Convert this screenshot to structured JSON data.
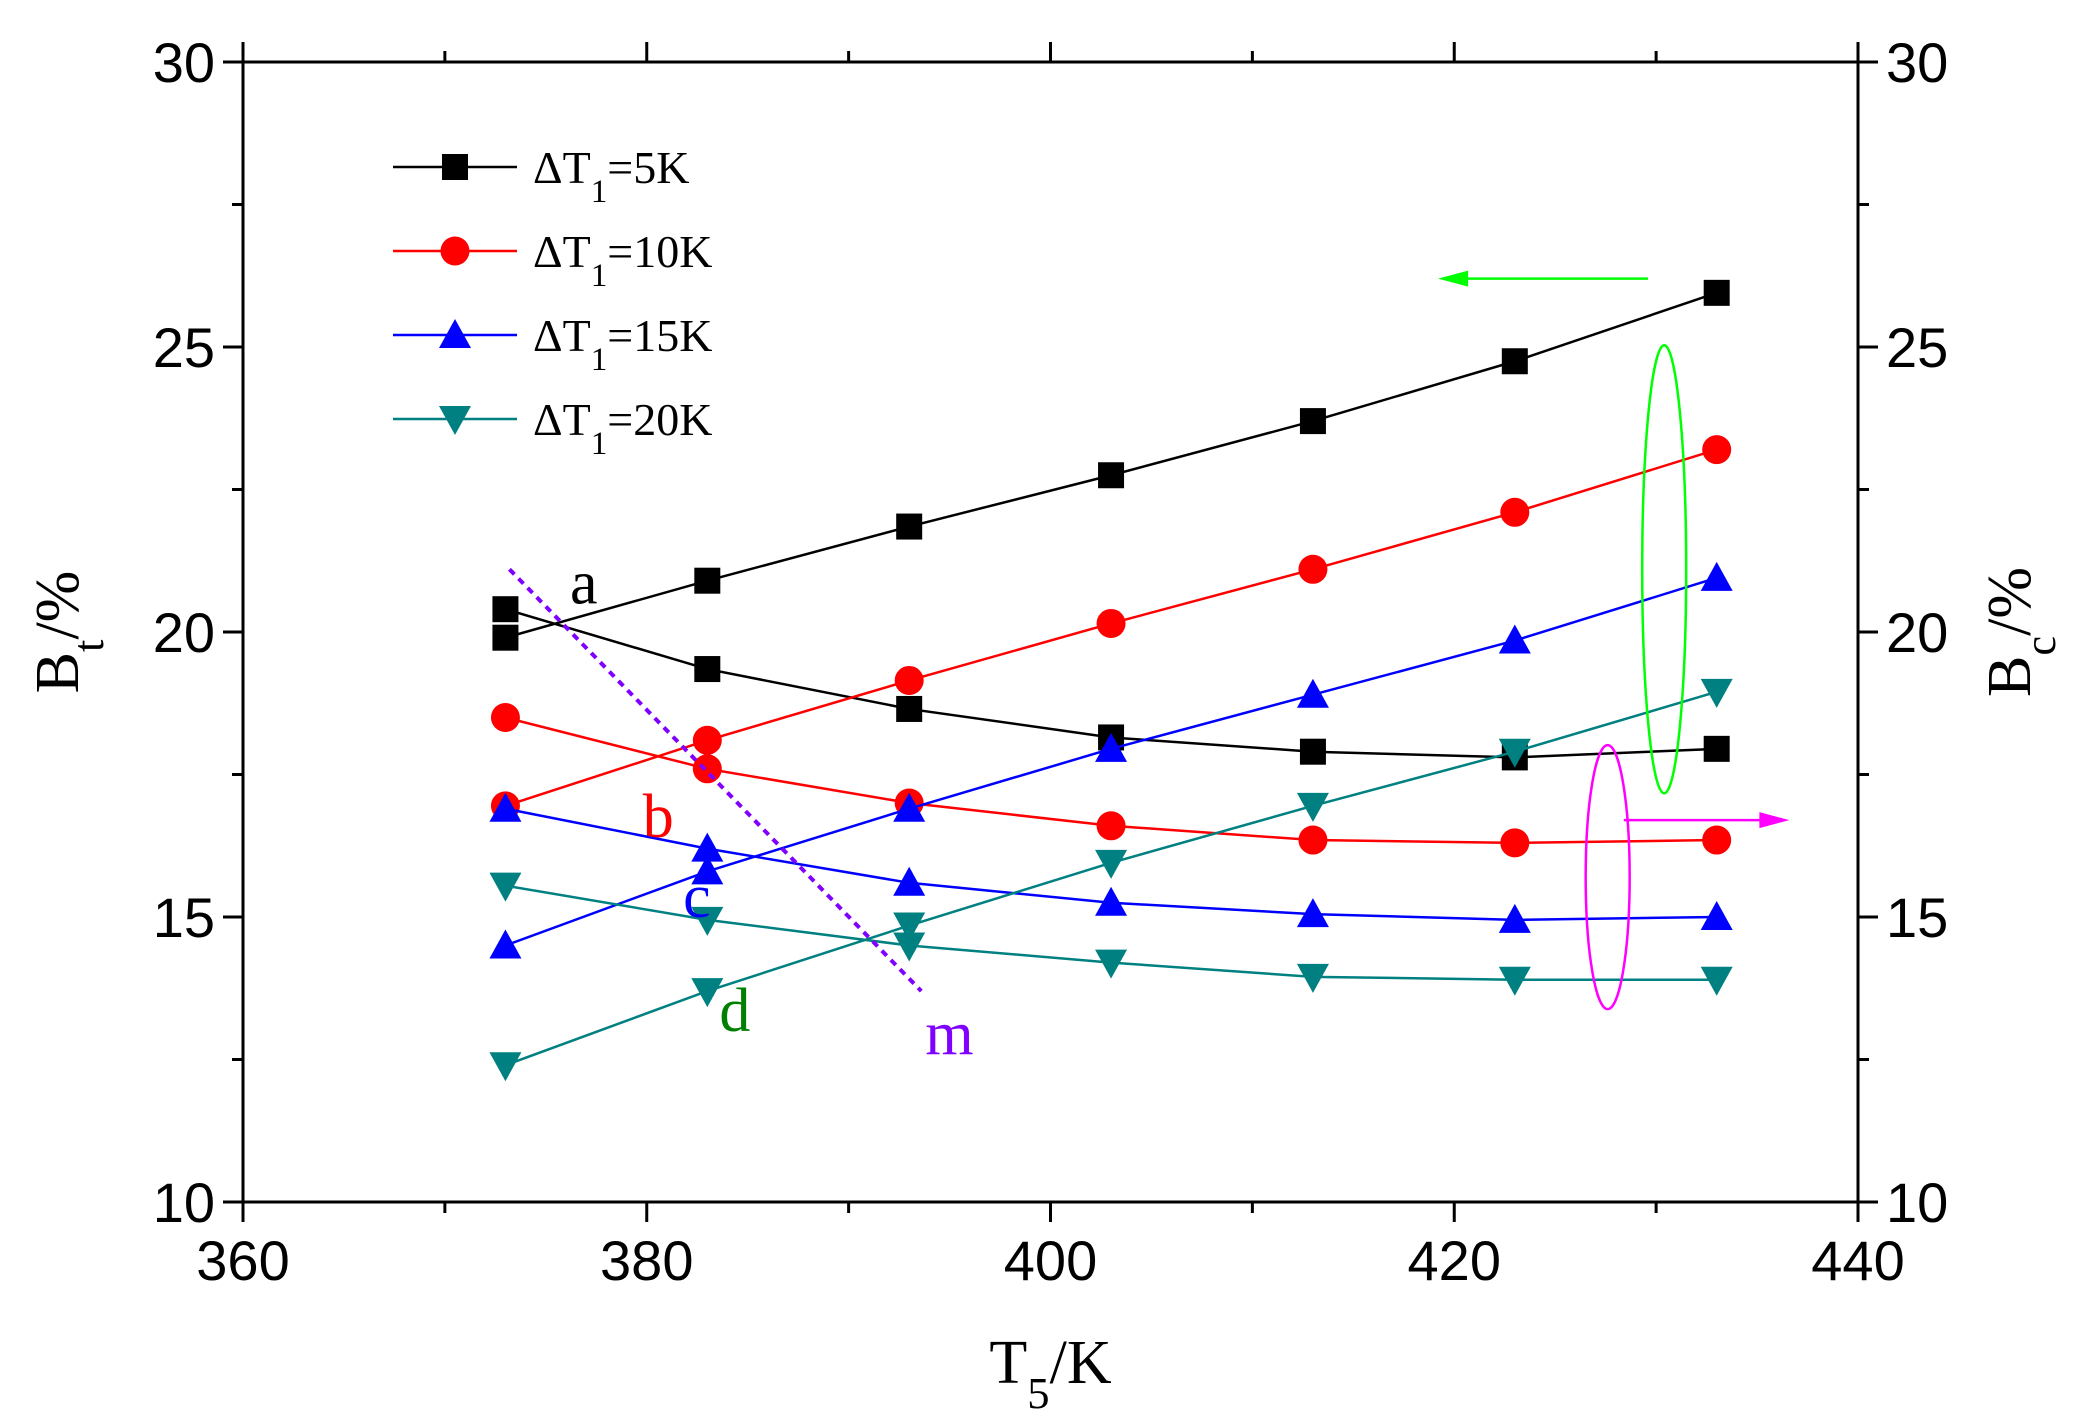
{
  "chart_data": {
    "type": "line",
    "title": "",
    "x": [
      373,
      383,
      393,
      403,
      413,
      423,
      433
    ],
    "xlim": [
      360,
      440
    ],
    "ylim": [
      10,
      30
    ],
    "y2lim": [
      10,
      30
    ],
    "xticks": [
      "360",
      "380",
      "400",
      "420",
      "440"
    ],
    "yticks": [
      "10",
      "15",
      "20",
      "25",
      "30"
    ],
    "y2ticks": [
      "10",
      "15",
      "20",
      "25",
      "30"
    ],
    "xlabel": {
      "main": "T",
      "sub": "5",
      "rest": "/K"
    },
    "ylabel": {
      "main": "B",
      "sub": "t",
      "rest": "/%"
    },
    "y2label": {
      "main": "B",
      "sub": "c",
      "rest": "/%"
    },
    "legend_position": "top-left",
    "series": [
      {
        "name": "ΔT1=5K",
        "legend": {
          "pre": "ΔT",
          "sub": "1",
          "post": "=5K"
        },
        "color": "#000000",
        "marker": "square",
        "Bt": [
          19.9,
          20.9,
          21.85,
          22.75,
          23.7,
          24.75,
          25.95
        ],
        "Bc": [
          20.4,
          19.35,
          18.65,
          18.15,
          17.9,
          17.8,
          17.95
        ]
      },
      {
        "name": "ΔT1=10K",
        "legend": {
          "pre": "ΔT",
          "sub": "1",
          "post": "=10K"
        },
        "color": "#ff0000",
        "marker": "circle",
        "Bt": [
          16.95,
          18.1,
          19.15,
          20.15,
          21.1,
          22.1,
          23.2
        ],
        "Bc": [
          18.5,
          17.6,
          17.0,
          16.6,
          16.35,
          16.3,
          16.35
        ]
      },
      {
        "name": "ΔT1=15K",
        "legend": {
          "pre": "ΔT",
          "sub": "1",
          "post": "=15K"
        },
        "color": "#0000ff",
        "marker": "triangle-up",
        "Bt": [
          14.5,
          15.8,
          16.9,
          17.95,
          18.9,
          19.85,
          20.95
        ],
        "Bc": [
          16.9,
          16.2,
          15.6,
          15.25,
          15.05,
          14.95,
          15.0
        ]
      },
      {
        "name": "ΔT1=20K",
        "legend": {
          "pre": "ΔT",
          "sub": "1",
          "post": "=20K"
        },
        "color": "#008080",
        "marker": "triangle-down",
        "Bt": [
          12.4,
          13.7,
          14.85,
          15.95,
          16.95,
          17.9,
          18.95
        ],
        "Bc": [
          15.55,
          14.95,
          14.5,
          14.2,
          13.95,
          13.9,
          13.9
        ]
      }
    ],
    "annotations": {
      "curve_labels": [
        {
          "text": "a",
          "color": "#000000"
        },
        {
          "text": "b",
          "color": "#ff0000"
        },
        {
          "text": "c",
          "color": "#0000ff"
        },
        {
          "text": "d",
          "color": "#008000"
        },
        {
          "text": "m",
          "color": "#8000ff"
        }
      ],
      "trend_line_color": "#8000ff",
      "bt_group_indicator_color": "#00ff00",
      "bc_group_indicator_color": "#ff00ff"
    }
  }
}
